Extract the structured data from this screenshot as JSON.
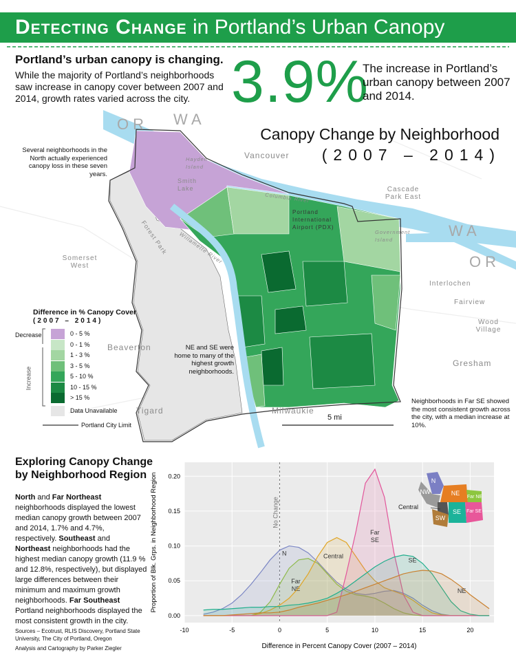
{
  "header": {
    "title_bold": "Detecting Change",
    "title_rest": "in Portland’s Urban Canopy"
  },
  "intro": {
    "heading": "Portland’s urban canopy is changing.",
    "text": "While the majority of Portland’s neighborhoods saw increase in canopy cover between 2007 and 2014, growth rates varied across the city."
  },
  "stat": {
    "value_label": "3.9%",
    "caption": "The increase in Portland’s urban canopy between 2007 and 2014."
  },
  "map": {
    "title": "Canopy Change by Neighborhood",
    "subtitle": "(2007 – 2014)",
    "places": [
      "OR",
      "WA",
      "Vancouver",
      "Hayden Island",
      "Smith Lake",
      "Columbia River",
      "Portland International Airport (PDX)",
      "Cascade Park East",
      "Government Island",
      "WA",
      "OR",
      "Somerset West",
      "Interlochen",
      "Fairview",
      "Wood Village",
      "Beaverton",
      "Gresham",
      "Tigard",
      "Milwaukie",
      "Forest Park",
      "Willamette River"
    ],
    "notes": [
      "Several neighborhoods in the North actually experienced canopy loss in these seven years.",
      "NE and SE were home to many of the highest growth neighborhoods.",
      "Neighborhoods in Far SE showed the most consistent growth across the city, with a median increase at 10%."
    ],
    "scale": "5 mi",
    "legend": {
      "title": "Difference in % Canopy Cover",
      "subtitle": "(2007 – 2014)",
      "decrease": "Decrease",
      "increase": "Increase",
      "items": [
        {
          "label": "0 - 5 %",
          "color": "#c6a3d6"
        },
        {
          "label": "0 - 1 %",
          "color": "#c7e6c6"
        },
        {
          "label": "1 - 3 %",
          "color": "#a3d6a2"
        },
        {
          "label": "3 - 5 %",
          "color": "#6fc07a"
        },
        {
          "label": "5 - 10 %",
          "color": "#34a65a"
        },
        {
          "label": "10 - 15 %",
          "color": "#1c8a44"
        },
        {
          "label": "> 15 %",
          "color": "#0a6a30"
        },
        {
          "label": "Data Unavailable",
          "color": "#e6e6e6"
        }
      ],
      "limit": "Portland City Limit"
    }
  },
  "sidebar": {
    "heading": "Exploring Canopy Change by Neighborhood Region",
    "body": [
      {
        "text": "North",
        "bold": true
      },
      {
        "text": " and ",
        "bold": false
      },
      {
        "text": "Far Northeast",
        "bold": true
      },
      {
        "text": " neighborhoods displayed the lowest median canopy growth between 2007 and 2014, 1.7% and 4.7%, respectively. ",
        "bold": false
      },
      {
        "text": "Southeast",
        "bold": true
      },
      {
        "text": " and ",
        "bold": false
      },
      {
        "text": "Northeast",
        "bold": true
      },
      {
        "text": " neighborhoods had the highest median canopy growth (11.9 % and 12.8%, respectively), but displayed large differences between their minimum and maximum growth neighborhoods. ",
        "bold": false
      },
      {
        "text": "Far Southeast",
        "bold": true
      },
      {
        "text": " Portland neighborhoods displayed the most consistent growth in the city.",
        "bold": false
      }
    ],
    "sources": "Sources – Ecotrust, RLIS Discovery, Portland State University, The City of Portland, Oregon",
    "credit": "Analysis and Cartography by Parker Ziegler"
  },
  "inset_labels": [
    "N",
    "NW",
    "NE",
    "Far NE",
    "Central",
    "SW",
    "SE",
    "Far SE"
  ],
  "chart_data": {
    "type": "area",
    "x_label": "Difference in Percent Canopy Cover (2007 – 2014)",
    "y_label": "Proportion of Blk. Grps. in Neighborhood Region",
    "reference_line": {
      "x": 0,
      "label": "No Change"
    },
    "x": [
      -8,
      -7,
      -6,
      -5,
      -4,
      -3,
      -2,
      -1,
      0,
      1,
      2,
      3,
      4,
      5,
      6,
      7,
      8,
      9,
      10,
      11,
      12,
      13,
      14,
      15,
      16,
      17,
      18,
      19,
      20,
      21,
      22
    ],
    "series": [
      {
        "name": "N",
        "color": "#7b86c4",
        "values": [
          0.002,
          0.005,
          0.01,
          0.018,
          0.03,
          0.045,
          0.062,
          0.08,
          0.094,
          0.1,
          0.098,
          0.09,
          0.077,
          0.062,
          0.048,
          0.038,
          0.032,
          0.03,
          0.032,
          0.035,
          0.036,
          0.032,
          0.025,
          0.015,
          0.007,
          0.002,
          0,
          0,
          0,
          0,
          0
        ]
      },
      {
        "name": "Far NE",
        "color": "#8dba4a",
        "values": [
          0,
          0,
          0,
          0,
          0,
          0,
          0.005,
          0.02,
          0.045,
          0.068,
          0.08,
          0.082,
          0.075,
          0.06,
          0.045,
          0.035,
          0.03,
          0.028,
          0.025,
          0.018,
          0.01,
          0.004,
          0.001,
          0,
          0,
          0,
          0,
          0,
          0,
          0,
          0
        ]
      },
      {
        "name": "Central",
        "color": "#e0a526",
        "values": [
          0,
          0,
          0,
          0,
          0,
          0,
          0.003,
          0.008,
          0.015,
          0.025,
          0.04,
          0.06,
          0.085,
          0.105,
          0.112,
          0.105,
          0.085,
          0.065,
          0.05,
          0.04,
          0.035,
          0.03,
          0.022,
          0.012,
          0.004,
          0.001,
          0,
          0,
          0,
          0,
          0
        ]
      },
      {
        "name": "Far SE",
        "color": "#e2559a",
        "values": [
          0,
          0,
          0,
          0,
          0,
          0,
          0,
          0,
          0,
          0,
          0,
          0,
          0,
          0,
          0.005,
          0.06,
          0.12,
          0.19,
          0.21,
          0.17,
          0.09,
          0.03,
          0.005,
          0,
          0,
          0,
          0,
          0,
          0,
          0,
          0
        ]
      },
      {
        "name": "SE",
        "color": "#1fae8c",
        "values": [
          0.008,
          0.009,
          0.009,
          0.01,
          0.011,
          0.012,
          0.012,
          0.013,
          0.013,
          0.015,
          0.016,
          0.018,
          0.021,
          0.025,
          0.032,
          0.04,
          0.05,
          0.06,
          0.07,
          0.078,
          0.084,
          0.087,
          0.085,
          0.075,
          0.06,
          0.04,
          0.02,
          0.007,
          0.002,
          0,
          0
        ]
      },
      {
        "name": "NE",
        "color": "#c9802e",
        "values": [
          0,
          0,
          0,
          0.001,
          0.002,
          0.003,
          0.004,
          0.004,
          0.005,
          0.008,
          0.012,
          0.015,
          0.018,
          0.022,
          0.026,
          0.03,
          0.035,
          0.04,
          0.045,
          0.05,
          0.055,
          0.06,
          0.063,
          0.065,
          0.064,
          0.06,
          0.052,
          0.042,
          0.03,
          0.02,
          0.01
        ]
      }
    ],
    "xlim": [
      -10,
      22.5
    ],
    "ylim": [
      -0.01,
      0.22
    ],
    "xticks": [
      -10,
      -5,
      0,
      5,
      10,
      15,
      20
    ],
    "yticks": [
      {
        "value": 0,
        "label": "0.00"
      },
      {
        "value": 0.05,
        "label": "0.05"
      },
      {
        "value": 0.1,
        "label": "0.10"
      },
      {
        "value": 0.15,
        "label": "0.15"
      },
      {
        "value": 0.2,
        "label": "0.20"
      }
    ],
    "grid": true
  }
}
